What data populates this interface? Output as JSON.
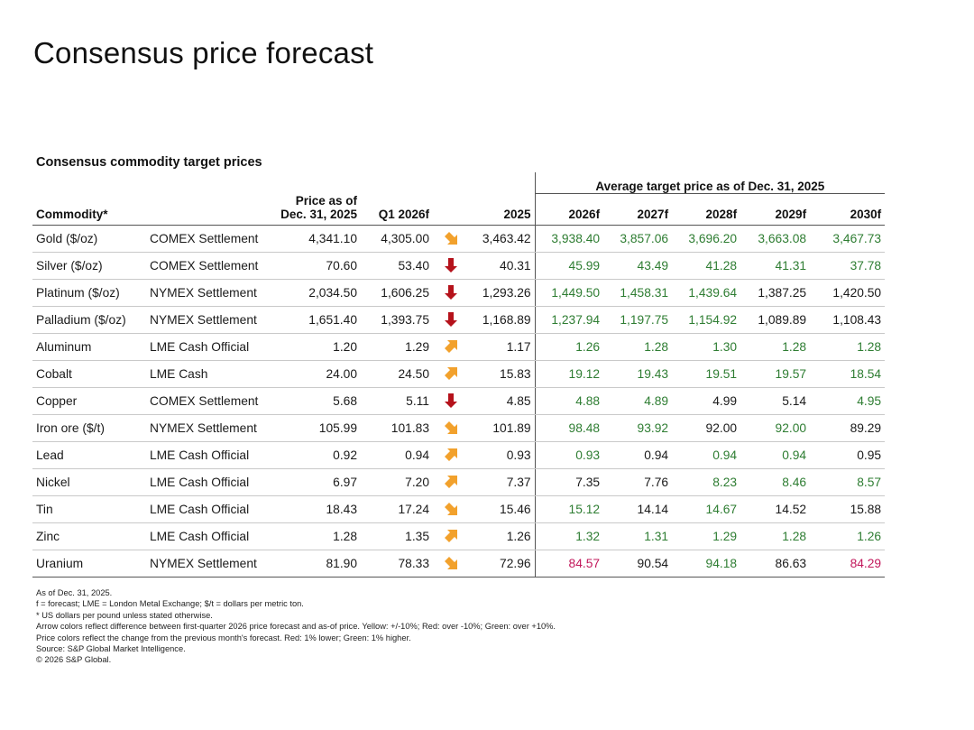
{
  "title": "Consensus price forecast",
  "subtitle": "Consensus commodity target prices",
  "colors": {
    "green": "#2e7d32",
    "red": "#c2185b",
    "neutral": "#1a1a1a",
    "arrow_yellow": "#f2a12c",
    "arrow_red": "#b5121b"
  },
  "header": {
    "group_label": "Average target price as of Dec. 31, 2025",
    "commodity": "Commodity*",
    "price_line1": "Price as of",
    "price_line2": "Dec. 31, 2025",
    "q1": "Q1 2026f",
    "y2025": "2025",
    "y2026": "2026f",
    "y2027": "2027f",
    "y2028": "2028f",
    "y2029": "2029f",
    "y2030": "2030f"
  },
  "rows": [
    {
      "commodity": "Gold ($/oz)",
      "market": "COMEX Settlement",
      "price": "4,341.10",
      "q1": "4,305.00",
      "arrow": "down-right",
      "arrow_color": "yellow",
      "y2025": "3,463.42",
      "f2026": "3,938.40",
      "c2026": "green",
      "f2027": "3,857.06",
      "c2027": "green",
      "f2028": "3,696.20",
      "c2028": "green",
      "f2029": "3,663.08",
      "c2029": "green",
      "f2030": "3,467.73",
      "c2030": "green"
    },
    {
      "commodity": "Silver ($/oz)",
      "market": "COMEX Settlement",
      "price": "70.60",
      "q1": "53.40",
      "arrow": "down",
      "arrow_color": "red",
      "y2025": "40.31",
      "f2026": "45.99",
      "c2026": "green",
      "f2027": "43.49",
      "c2027": "green",
      "f2028": "41.28",
      "c2028": "green",
      "f2029": "41.31",
      "c2029": "green",
      "f2030": "37.78",
      "c2030": "green"
    },
    {
      "commodity": "Platinum ($/oz)",
      "market": "NYMEX Settlement",
      "price": "2,034.50",
      "q1": "1,606.25",
      "arrow": "down",
      "arrow_color": "red",
      "y2025": "1,293.26",
      "f2026": "1,449.50",
      "c2026": "green",
      "f2027": "1,458.31",
      "c2027": "green",
      "f2028": "1,439.64",
      "c2028": "green",
      "f2029": "1,387.25",
      "c2029": "neutral",
      "f2030": "1,420.50",
      "c2030": "neutral"
    },
    {
      "commodity": "Palladium ($/oz)",
      "market": "NYMEX Settlement",
      "price": "1,651.40",
      "q1": "1,393.75",
      "arrow": "down",
      "arrow_color": "red",
      "y2025": "1,168.89",
      "f2026": "1,237.94",
      "c2026": "green",
      "f2027": "1,197.75",
      "c2027": "green",
      "f2028": "1,154.92",
      "c2028": "green",
      "f2029": "1,089.89",
      "c2029": "neutral",
      "f2030": "1,108.43",
      "c2030": "neutral"
    },
    {
      "commodity": "Aluminum",
      "market": "LME Cash Official",
      "price": "1.20",
      "q1": "1.29",
      "arrow": "up-right",
      "arrow_color": "yellow",
      "y2025": "1.17",
      "f2026": "1.26",
      "c2026": "green",
      "f2027": "1.28",
      "c2027": "green",
      "f2028": "1.30",
      "c2028": "green",
      "f2029": "1.28",
      "c2029": "green",
      "f2030": "1.28",
      "c2030": "green"
    },
    {
      "commodity": "Cobalt",
      "market": "LME Cash",
      "price": "24.00",
      "q1": "24.50",
      "arrow": "up-right",
      "arrow_color": "yellow",
      "y2025": "15.83",
      "f2026": "19.12",
      "c2026": "green",
      "f2027": "19.43",
      "c2027": "green",
      "f2028": "19.51",
      "c2028": "green",
      "f2029": "19.57",
      "c2029": "green",
      "f2030": "18.54",
      "c2030": "green"
    },
    {
      "commodity": "Copper",
      "market": "COMEX Settlement",
      "price": "5.68",
      "q1": "5.11",
      "arrow": "down",
      "arrow_color": "red",
      "y2025": "4.85",
      "f2026": "4.88",
      "c2026": "green",
      "f2027": "4.89",
      "c2027": "green",
      "f2028": "4.99",
      "c2028": "neutral",
      "f2029": "5.14",
      "c2029": "neutral",
      "f2030": "4.95",
      "c2030": "green"
    },
    {
      "commodity": "Iron ore ($/t)",
      "market": "NYMEX Settlement",
      "price": "105.99",
      "q1": "101.83",
      "arrow": "down-right",
      "arrow_color": "yellow",
      "y2025": "101.89",
      "f2026": "98.48",
      "c2026": "green",
      "f2027": "93.92",
      "c2027": "green",
      "f2028": "92.00",
      "c2028": "neutral",
      "f2029": "92.00",
      "c2029": "green",
      "f2030": "89.29",
      "c2030": "neutral"
    },
    {
      "commodity": "Lead",
      "market": "LME Cash Official",
      "price": "0.92",
      "q1": "0.94",
      "arrow": "up-right",
      "arrow_color": "yellow",
      "y2025": "0.93",
      "f2026": "0.93",
      "c2026": "green",
      "f2027": "0.94",
      "c2027": "neutral",
      "f2028": "0.94",
      "c2028": "green",
      "f2029": "0.94",
      "c2029": "green",
      "f2030": "0.95",
      "c2030": "neutral"
    },
    {
      "commodity": "Nickel",
      "market": "LME Cash Official",
      "price": "6.97",
      "q1": "7.20",
      "arrow": "up-right",
      "arrow_color": "yellow",
      "y2025": "7.37",
      "f2026": "7.35",
      "c2026": "neutral",
      "f2027": "7.76",
      "c2027": "neutral",
      "f2028": "8.23",
      "c2028": "green",
      "f2029": "8.46",
      "c2029": "green",
      "f2030": "8.57",
      "c2030": "green"
    },
    {
      "commodity": "Tin",
      "market": "LME Cash Official",
      "price": "18.43",
      "q1": "17.24",
      "arrow": "down-right",
      "arrow_color": "yellow",
      "y2025": "15.46",
      "f2026": "15.12",
      "c2026": "green",
      "f2027": "14.14",
      "c2027": "neutral",
      "f2028": "14.67",
      "c2028": "green",
      "f2029": "14.52",
      "c2029": "neutral",
      "f2030": "15.88",
      "c2030": "neutral"
    },
    {
      "commodity": "Zinc",
      "market": "LME Cash Official",
      "price": "1.28",
      "q1": "1.35",
      "arrow": "up-right",
      "arrow_color": "yellow",
      "y2025": "1.26",
      "f2026": "1.32",
      "c2026": "green",
      "f2027": "1.31",
      "c2027": "green",
      "f2028": "1.29",
      "c2028": "green",
      "f2029": "1.28",
      "c2029": "green",
      "f2030": "1.26",
      "c2030": "green"
    },
    {
      "commodity": "Uranium",
      "market": "NYMEX Settlement",
      "price": "81.90",
      "q1": "78.33",
      "arrow": "down-right",
      "arrow_color": "yellow",
      "y2025": "72.96",
      "f2026": "84.57",
      "c2026": "red",
      "f2027": "90.54",
      "c2027": "neutral",
      "f2028": "94.18",
      "c2028": "green",
      "f2029": "86.63",
      "c2029": "neutral",
      "f2030": "84.29",
      "c2030": "red"
    }
  ],
  "notes": [
    "As of Dec. 31, 2025.",
    "f = forecast; LME = London Metal Exchange; $/t = dollars per metric ton.",
    "* US dollars per pound unless stated otherwise.",
    "Arrow colors reflect difference between first-quarter 2026 price forecast and as-of price. Yellow: +/-10%; Red: over -10%; Green: over +10%.",
    "Price colors reflect the change from the previous month's forecast. Red: 1% lower; Green: 1% higher.",
    "Source: S&P Global Market Intelligence.",
    "© 2026 S&P Global."
  ]
}
